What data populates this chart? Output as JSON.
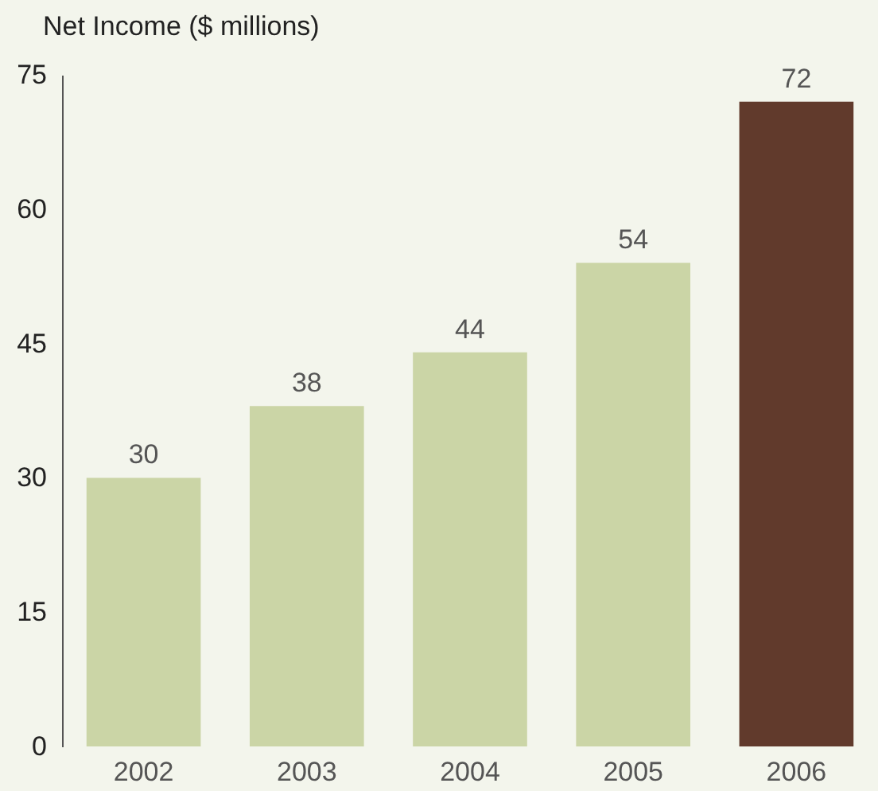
{
  "chart_data": {
    "type": "bar",
    "title": "Net Income ($ millions)",
    "categories": [
      "2002",
      "2003",
      "2004",
      "2005",
      "2006"
    ],
    "values": [
      30,
      38,
      44,
      54,
      72
    ],
    "colors": [
      "#cbd5a6",
      "#cbd5a6",
      "#cbd5a6",
      "#cbd5a6",
      "#613a2c"
    ],
    "ylim": [
      0,
      75
    ],
    "yticks": [
      0,
      15,
      30,
      45,
      60,
      75
    ],
    "grid": false,
    "data_labels": true
  }
}
